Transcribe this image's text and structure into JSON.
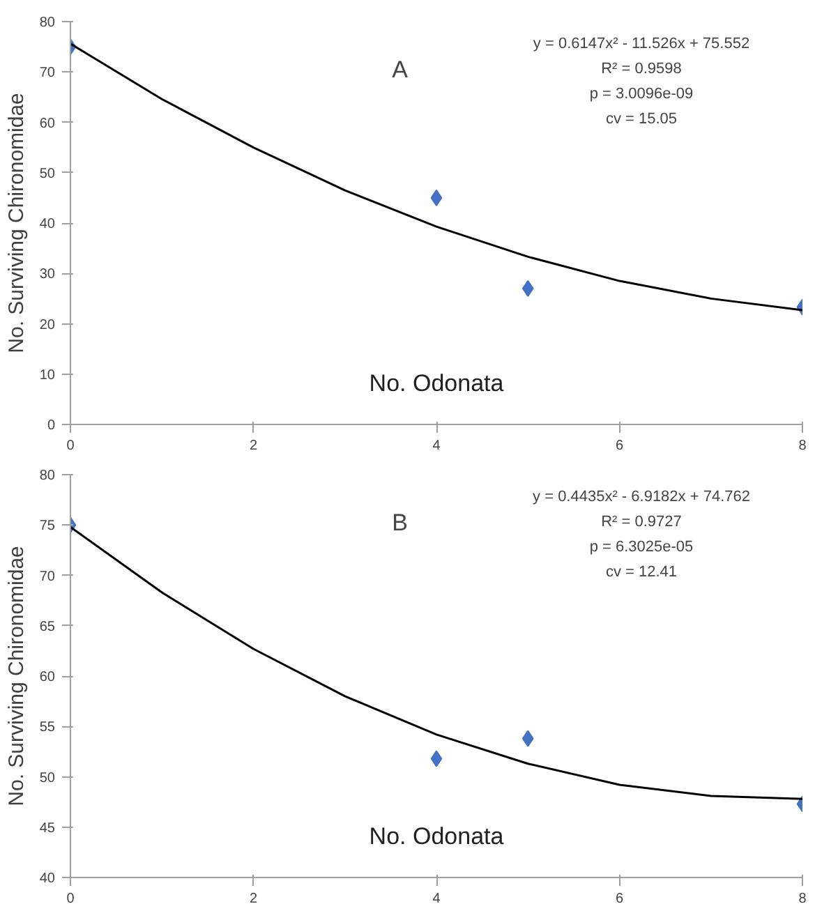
{
  "chart_data": [
    {
      "type": "scatter",
      "xlabel": "No. Odonata",
      "ylabel": "No. Surviving Chironomidae",
      "xlim": [
        0,
        8
      ],
      "ylim": [
        0,
        80
      ],
      "xticks": [
        0,
        2,
        4,
        6,
        8
      ],
      "yticks": [
        0,
        10,
        20,
        30,
        40,
        50,
        60,
        70,
        80
      ],
      "grid": false,
      "marker": "diamond",
      "annotations": [
        "A",
        "y = 0.6147x² - 11.526x + 75.552",
        "R² = 0.9598",
        "p = 3.0096e-09",
        "cv = 15.05"
      ],
      "series": [
        {
          "color": "#4472c4",
          "x": [
            0,
            4,
            5,
            8
          ],
          "values": [
            75,
            45,
            27,
            23.3
          ]
        },
        {
          "type": "line",
          "color": "#000000",
          "marker": "none",
          "x": [
            0,
            1,
            2,
            3,
            4,
            5,
            6,
            7,
            8
          ],
          "values": [
            75.6,
            64.6,
            55.0,
            46.5,
            39.3,
            33.3,
            28.5,
            25.0,
            22.7
          ]
        }
      ]
    },
    {
      "type": "scatter",
      "xlabel": "No. Odonata",
      "ylabel": "No. Surviving Chironomidae",
      "xlim": [
        0,
        8
      ],
      "ylim": [
        40,
        80
      ],
      "xticks": [
        0,
        2,
        4,
        6,
        8
      ],
      "yticks": [
        40,
        45,
        50,
        55,
        60,
        65,
        70,
        75,
        80
      ],
      "grid": false,
      "marker": "diamond",
      "annotations": [
        "B",
        "y = 0.4435x² - 6.9182x + 74.762",
        "R² = 0.9727",
        "p = 6.3025e-05",
        "cv = 12.41"
      ],
      "series": [
        {
          "color": "#4472c4",
          "x": [
            0,
            4,
            5,
            8
          ],
          "values": [
            75,
            51.8,
            53.8,
            47.3
          ]
        },
        {
          "type": "line",
          "color": "#000000",
          "marker": "none",
          "x": [
            0,
            1,
            2,
            3,
            4,
            5,
            6,
            7,
            8
          ],
          "values": [
            74.8,
            68.3,
            62.7,
            58.0,
            54.2,
            51.3,
            49.2,
            48.1,
            47.8
          ]
        }
      ]
    }
  ]
}
